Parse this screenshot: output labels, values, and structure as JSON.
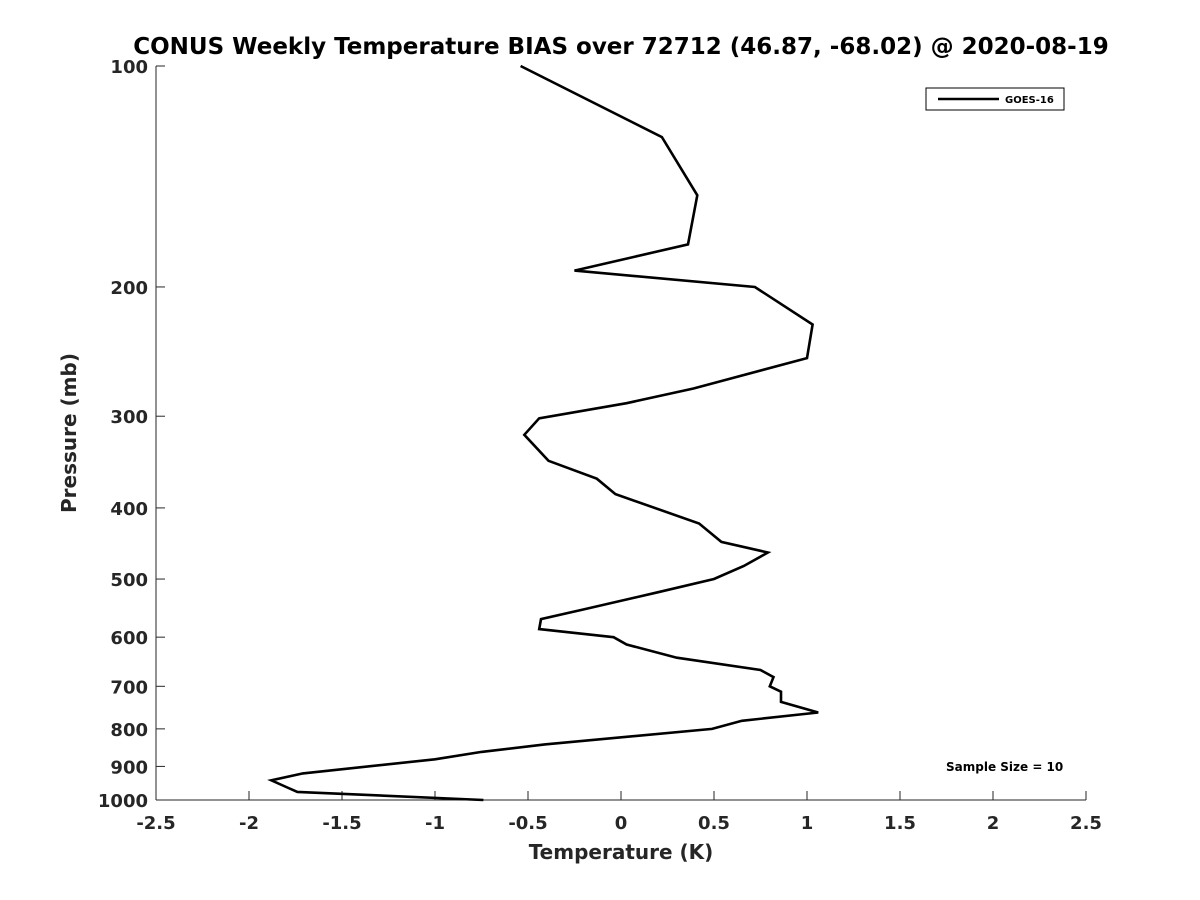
{
  "chart_data": {
    "type": "line",
    "title": "CONUS Weekly Temperature BIAS over 72712 (46.87, -68.02) @ 2020-08-19",
    "xlabel": "Temperature (K)",
    "ylabel": "Pressure (mb)",
    "xlim": [
      -2.5,
      2.5
    ],
    "ylim": [
      1000,
      100
    ],
    "yscale": "log",
    "y_reversed": true,
    "xticks": [
      -2.5,
      -2,
      -1.5,
      -1,
      -0.5,
      0,
      0.5,
      1,
      1.5,
      2,
      2.5
    ],
    "xtick_labels": [
      "-2.5",
      "-2",
      "-1.5",
      "-1",
      "-0.5",
      "0",
      "0.5",
      "1",
      "1.5",
      "2",
      "2.5"
    ],
    "yticks": [
      100,
      200,
      300,
      400,
      500,
      600,
      700,
      800,
      900,
      1000
    ],
    "ytick_labels": [
      "100",
      "200",
      "300",
      "400",
      "500",
      "600",
      "700",
      "800",
      "900",
      "1000"
    ],
    "grid": false,
    "legend_position": "top-right",
    "annotation": "Sample Size = 10",
    "series": [
      {
        "name": "GOES-16",
        "color": "#000000",
        "points": [
          [
            -0.54,
            100
          ],
          [
            0.22,
            125
          ],
          [
            0.41,
            150
          ],
          [
            0.36,
            175
          ],
          [
            -0.25,
            190
          ],
          [
            0.72,
            200
          ],
          [
            1.03,
            225
          ],
          [
            1.0,
            250
          ],
          [
            0.39,
            275
          ],
          [
            0.03,
            288
          ],
          [
            -0.44,
            302
          ],
          [
            -0.52,
            318
          ],
          [
            -0.39,
            345
          ],
          [
            -0.13,
            365
          ],
          [
            -0.03,
            383
          ],
          [
            0.42,
            420
          ],
          [
            0.54,
            445
          ],
          [
            0.79,
            460
          ],
          [
            0.66,
            480
          ],
          [
            0.5,
            500
          ],
          [
            0.2,
            521
          ],
          [
            -0.2,
            550
          ],
          [
            -0.43,
            567
          ],
          [
            -0.44,
            585
          ],
          [
            -0.04,
            600
          ],
          [
            0.03,
            614
          ],
          [
            0.3,
            640
          ],
          [
            0.75,
            665
          ],
          [
            0.82,
            680
          ],
          [
            0.8,
            700
          ],
          [
            0.86,
            712
          ],
          [
            0.86,
            735
          ],
          [
            1.06,
            760
          ],
          [
            0.65,
            780
          ],
          [
            0.49,
            800
          ],
          [
            -0.41,
            840
          ],
          [
            -0.75,
            860
          ],
          [
            -1,
            880
          ],
          [
            -1.71,
            920
          ],
          [
            -1.88,
            940
          ],
          [
            -1.8,
            960
          ],
          [
            -1.74,
            975
          ],
          [
            -0.74,
            1000
          ]
        ]
      }
    ]
  }
}
